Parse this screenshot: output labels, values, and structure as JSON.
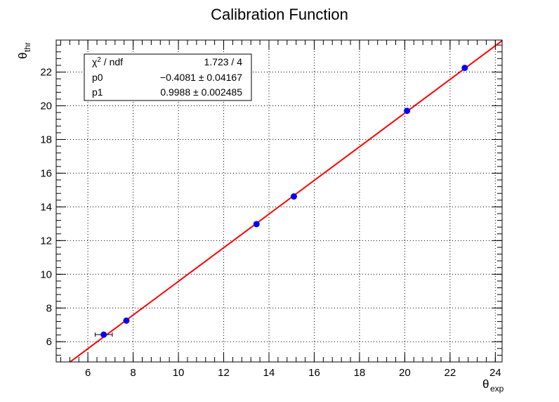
{
  "chart_data": {
    "type": "scatter",
    "title": "Calibration Function",
    "xlabel": {
      "main": "θ",
      "sub": "exp"
    },
    "ylabel": {
      "main": "θ",
      "sub": "thr"
    },
    "xlim": [
      4.6,
      24.3
    ],
    "ylim": [
      4.8,
      23.9
    ],
    "xticks": [
      6,
      8,
      10,
      12,
      14,
      16,
      18,
      20,
      22,
      24
    ],
    "yticks": [
      6,
      8,
      10,
      12,
      14,
      16,
      18,
      20,
      22
    ],
    "grid": true,
    "colors": {
      "points": "#0000ff",
      "fit": "#ff0000",
      "errorbars": "#000000"
    },
    "series": [
      {
        "points": [
          {
            "x": 6.7,
            "y": 6.42,
            "xerr": 0.38
          },
          {
            "x": 7.7,
            "y": 7.25,
            "xerr": 0.05
          },
          {
            "x": 13.45,
            "y": 12.98,
            "xerr": 0.05
          },
          {
            "x": 15.1,
            "y": 14.62,
            "xerr": 0.05
          },
          {
            "x": 20.1,
            "y": 19.7,
            "xerr": 0.05
          },
          {
            "x": 22.65,
            "y": 22.25,
            "xerr": 0.05
          }
        ]
      }
    ],
    "fit": {
      "type": "linear",
      "p0": -0.4081,
      "p1": 0.9988
    },
    "stats_box": {
      "placement": "top-left",
      "rows": [
        {
          "label_main": "χ",
          "label_sup": "2",
          "label_rest": " / ndf",
          "value": "1.723 / 4"
        },
        {
          "label_main": "p0",
          "label_sup": "",
          "label_rest": "",
          "value": "−0.4081 ± 0.04167"
        },
        {
          "label_main": "p1",
          "label_sup": "",
          "label_rest": "",
          "value": "0.9988 ± 0.002485"
        }
      ]
    }
  }
}
